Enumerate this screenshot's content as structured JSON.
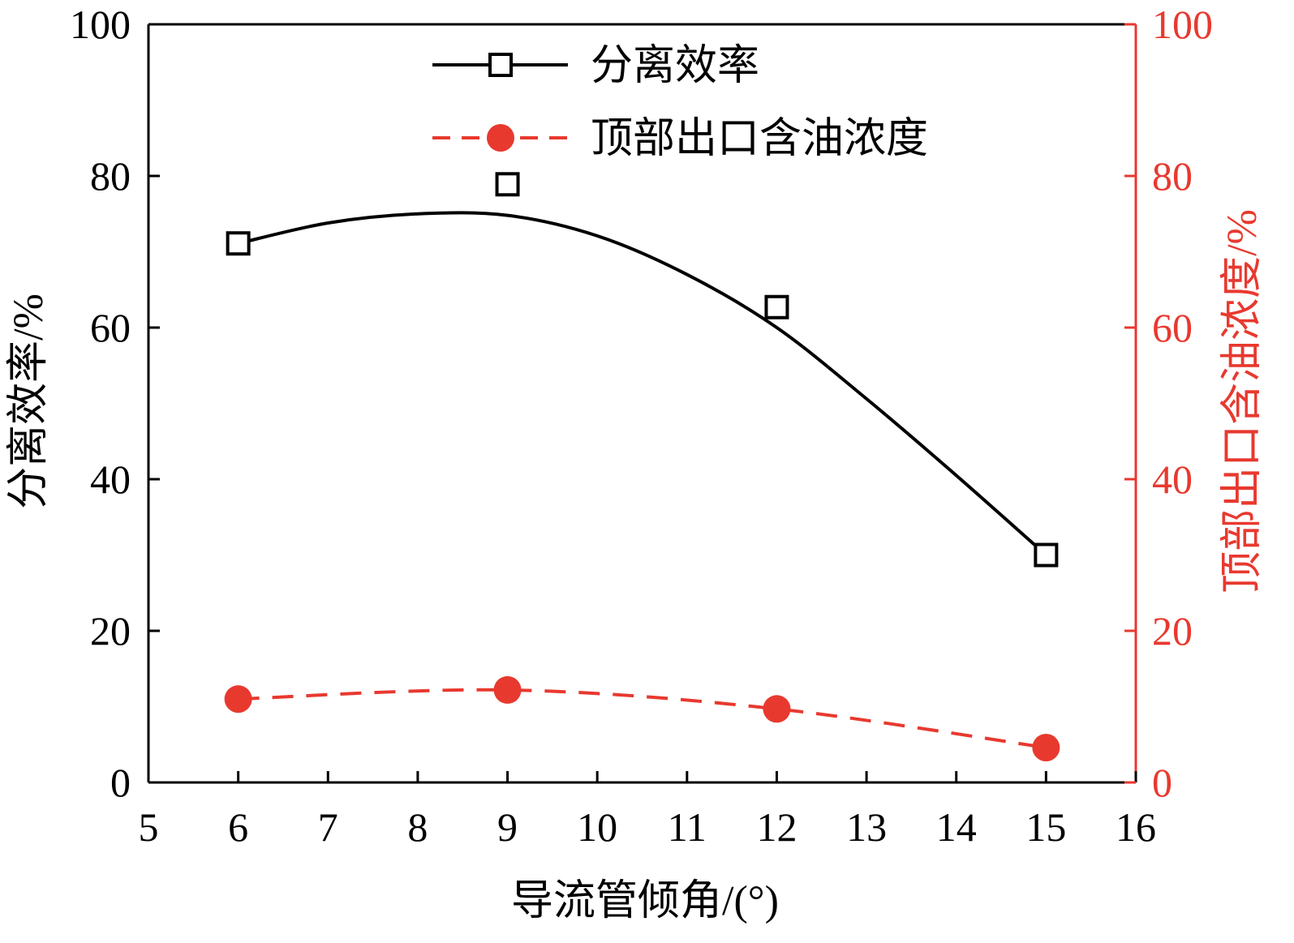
{
  "chart_data": {
    "type": "line",
    "xlabel": "导流管倾角/(°)",
    "ylabel_left": "分离效率/%",
    "ylabel_right": "顶部出口含油浓度/%",
    "xlim": [
      5,
      16
    ],
    "xticks": [
      "5",
      "6",
      "7",
      "8",
      "9",
      "10",
      "11",
      "12",
      "13",
      "14",
      "15",
      "16"
    ],
    "ylim_left": [
      0,
      100
    ],
    "yticks_left": [
      "0",
      "20",
      "40",
      "60",
      "80",
      "100"
    ],
    "ylim_right": [
      0,
      100
    ],
    "yticks_right": [
      "0",
      "20",
      "40",
      "60",
      "80",
      "100"
    ],
    "legend_position": "top-center",
    "grid": false,
    "series": [
      {
        "name": "分离效率",
        "axis": "left",
        "marker": "open-square",
        "line": "solid",
        "color": "#000000",
        "points": [
          {
            "x": 6,
            "y": 71.1
          },
          {
            "x": 9,
            "y": 78.9
          },
          {
            "x": 12,
            "y": 62.7
          },
          {
            "x": 15,
            "y": 30.0
          }
        ],
        "fit_curve": [
          {
            "x": 6,
            "y": 71.1
          },
          {
            "x": 7,
            "y": 73.8
          },
          {
            "x": 8,
            "y": 75.0
          },
          {
            "x": 9,
            "y": 74.8
          },
          {
            "x": 10,
            "y": 72.1
          },
          {
            "x": 11,
            "y": 67.0
          },
          {
            "x": 12,
            "y": 60.0
          },
          {
            "x": 13,
            "y": 50.6
          },
          {
            "x": 14,
            "y": 40.5
          },
          {
            "x": 15,
            "y": 30.0
          }
        ]
      },
      {
        "name": "顶部出口含油浓度",
        "axis": "right",
        "marker": "filled-circle",
        "line": "dashed",
        "color": "#e8392f",
        "points": [
          {
            "x": 6,
            "y": 11.0
          },
          {
            "x": 9,
            "y": 12.2
          },
          {
            "x": 12,
            "y": 9.7
          },
          {
            "x": 15,
            "y": 4.6
          }
        ]
      }
    ]
  }
}
